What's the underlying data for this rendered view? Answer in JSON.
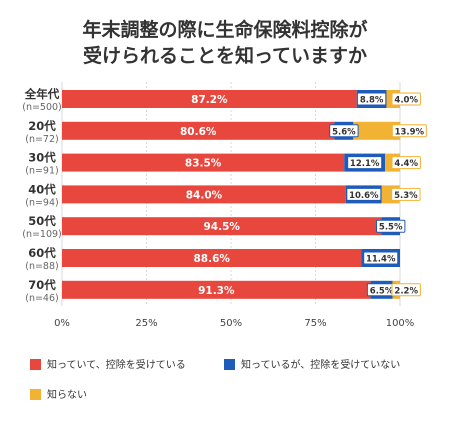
{
  "chart_data": {
    "type": "bar",
    "orientation": "horizontal",
    "stacked": true,
    "title": [
      "年末調整の際に生命保険料控除が",
      "受けられることを知っていますか"
    ],
    "categories": [
      {
        "label": "全年代",
        "sub": "(n=500)"
      },
      {
        "label": "20代",
        "sub": "(n=72)"
      },
      {
        "label": "30代",
        "sub": "(n=91)"
      },
      {
        "label": "40代",
        "sub": "(n=94)"
      },
      {
        "label": "50代",
        "sub": "(n=109)"
      },
      {
        "label": "60代",
        "sub": "(n=88)"
      },
      {
        "label": "70代",
        "sub": "(n=46)"
      }
    ],
    "series": [
      {
        "name": "知っていて、控除を受けている",
        "color": "#e8473d",
        "values": [
          87.2,
          80.6,
          83.5,
          84.0,
          94.5,
          88.6,
          91.3
        ],
        "labels": [
          "87.2%",
          "80.6%",
          "83.5%",
          "84.0%",
          "94.5%",
          "88.6%",
          "91.3%"
        ]
      },
      {
        "name": "知っているが、控除を受けていない",
        "color": "#1f5bb8",
        "values": [
          8.8,
          5.6,
          12.1,
          10.6,
          5.5,
          11.4,
          6.5
        ],
        "labels": [
          "8.8%",
          "5.6%",
          "12.1%",
          "10.6%",
          "5.5%",
          "11.4%",
          "6.5%"
        ]
      },
      {
        "name": "知らない",
        "color": "#f2b233",
        "values": [
          4.0,
          13.9,
          4.4,
          5.3,
          0,
          0,
          2.2
        ],
        "labels": [
          "4.0%",
          "13.9%",
          "4.4%",
          "5.3%",
          "",
          "",
          "2.2%"
        ]
      }
    ],
    "x_ticks": [
      "0%",
      "25%",
      "50%",
      "75%",
      "100%"
    ],
    "xlim": [
      0,
      100
    ],
    "grid": true,
    "legend": "bottom"
  }
}
